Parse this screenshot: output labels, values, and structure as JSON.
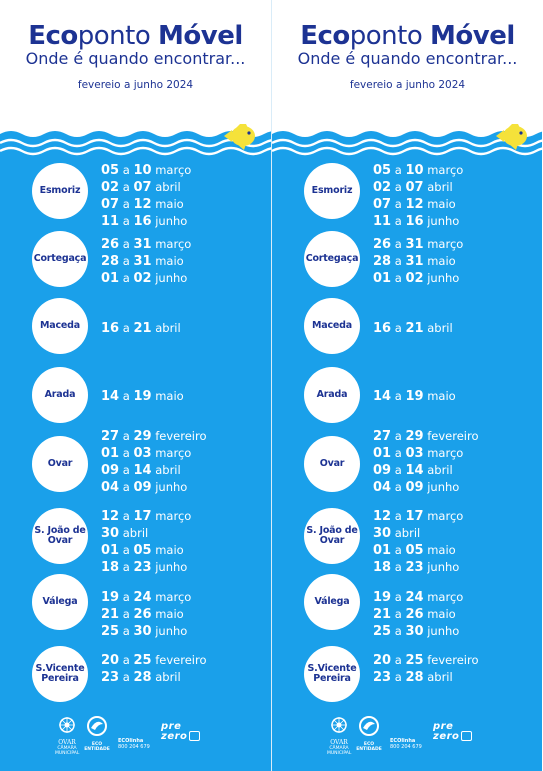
{
  "brand": {
    "eco": "Eco",
    "ponto": "ponto",
    "movel": "Móvel"
  },
  "tagline": "Onde é quando encontrar...",
  "period": "fevereio a junho 2024",
  "colors": {
    "navy": "#1d3393",
    "sea": "#1aa0ea",
    "fish": "#f5e23a",
    "wave": "#ffffff"
  },
  "icons": {
    "fish": "fish-icon",
    "ovar": "ovar-logo-icon",
    "eco": "eco-entity-logo-icon"
  },
  "locations": [
    {
      "name": "Esmoriz",
      "dates": [
        {
          "from": "05",
          "to": "10",
          "month": "março"
        },
        {
          "from": "02",
          "to": "07",
          "month": "abril"
        },
        {
          "from": "07",
          "to": "12",
          "month": "maio"
        },
        {
          "from": "11",
          "to": "16",
          "month": "junho"
        }
      ]
    },
    {
      "name": "Cortegaça",
      "dates": [
        {
          "from": "26",
          "to": "31",
          "month": "março"
        },
        {
          "from": "28",
          "to": "31",
          "month": "maio"
        },
        {
          "from": "01",
          "to": "02",
          "month": "junho"
        }
      ]
    },
    {
      "name": "Maceda",
      "dates": [
        {
          "from": "16",
          "to": "21",
          "month": "abril"
        }
      ]
    },
    {
      "name": "Arada",
      "dates": [
        {
          "from": "14",
          "to": "19",
          "month": "maio"
        }
      ]
    },
    {
      "name": "Ovar",
      "dates": [
        {
          "from": "27",
          "to": "29",
          "month": "fevereiro"
        },
        {
          "from": "01",
          "to": "03",
          "month": "março"
        },
        {
          "from": "09",
          "to": "14",
          "month": "abril"
        },
        {
          "from": "04",
          "to": "09",
          "month": "junho"
        }
      ]
    },
    {
      "name": "S. João de Ovar",
      "dates": [
        {
          "from": "12",
          "to": "17",
          "month": "março"
        },
        {
          "from": "30",
          "to": "",
          "month": "abril"
        },
        {
          "from": "01",
          "to": "05",
          "month": "maio"
        },
        {
          "from": "18",
          "to": "23",
          "month": "junho"
        }
      ]
    },
    {
      "name": "Válega",
      "dates": [
        {
          "from": "19",
          "to": "24",
          "month": "março"
        },
        {
          "from": "21",
          "to": "26",
          "month": "maio"
        },
        {
          "from": "25",
          "to": "30",
          "month": "junho"
        }
      ]
    },
    {
      "name": "S.Vicente Pereira",
      "dates": [
        {
          "from": "20",
          "to": "25",
          "month": "fevereiro"
        },
        {
          "from": "23",
          "to": "28",
          "month": "abril"
        }
      ]
    }
  ],
  "connector": "a",
  "footer": {
    "ovar": "OVAR",
    "ovar_sub": "CÂMARA MUNICIPAL",
    "eco_entity": "ECO ENTIDADE",
    "ecolinha": "ECOlinha",
    "phone": "800 204 679",
    "prezero_1": "pre",
    "prezero_2": "zero"
  }
}
